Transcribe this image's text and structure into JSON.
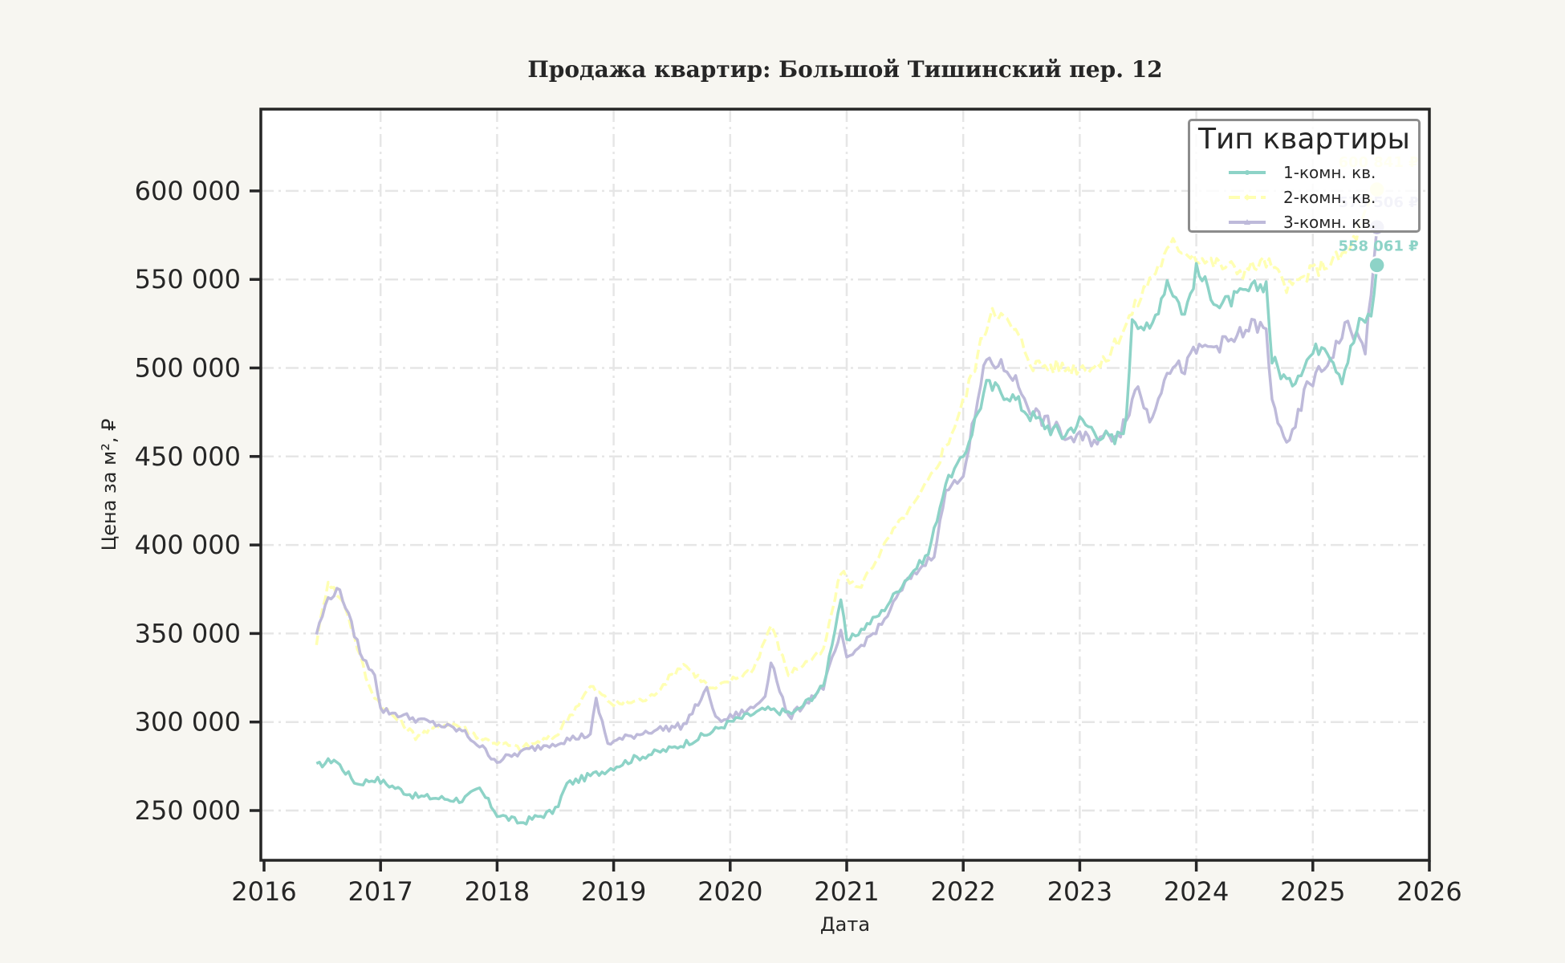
{
  "chart_data": {
    "type": "line",
    "title": "Продажа квартир: Большой Тишинский пер. 12",
    "xlabel": "Дата",
    "ylabel": "Цена за м², ₽",
    "xlim": [
      2016,
      2026
    ],
    "ylim": [
      223000,
      643000
    ],
    "grid": true,
    "legend_position": "upper right",
    "legend_title": "Тип квартиры",
    "x_ticks": [
      "2016",
      "2017",
      "2018",
      "2019",
      "2020",
      "2021",
      "2022",
      "2023",
      "2024",
      "2025",
      "2026"
    ],
    "y_ticks": [
      250000,
      300000,
      350000,
      400000,
      450000,
      500000,
      550000,
      600000
    ],
    "y_tick_labels": [
      "250 000",
      "300 000",
      "350 000",
      "400 000",
      "450 000",
      "500 000",
      "550 000",
      "600 000"
    ],
    "series": [
      {
        "name": "1-комн. кв.",
        "color": "#8dd3c7",
        "dash": "solid",
        "end_label": "558 061 ₽",
        "end_value": 558061,
        "x": [
          2016.45,
          2016.6,
          2016.8,
          2016.95,
          2017.3,
          2017.7,
          2017.85,
          2018.0,
          2018.2,
          2018.5,
          2018.6,
          2018.9,
          2019.2,
          2019.5,
          2019.8,
          2020.0,
          2020.3,
          2020.55,
          2020.8,
          2020.95,
          2021.0,
          2021.3,
          2021.5,
          2021.7,
          2021.85,
          2022.0,
          2022.2,
          2022.4,
          2022.6,
          2022.85,
          2023.0,
          2023.3,
          2023.4,
          2023.45,
          2023.6,
          2023.75,
          2023.9,
          2024.0,
          2024.2,
          2024.5,
          2024.6,
          2024.65,
          2024.8,
          2024.95,
          2025.1,
          2025.25,
          2025.4,
          2025.5,
          2025.55
        ],
        "values": [
          275000,
          279000,
          265000,
          268000,
          258000,
          256000,
          262000,
          248000,
          243000,
          250000,
          265000,
          272000,
          280000,
          285000,
          293000,
          300000,
          307000,
          305000,
          320000,
          370000,
          345000,
          362000,
          380000,
          395000,
          435000,
          450000,
          490000,
          485000,
          472000,
          462000,
          470000,
          458000,
          470000,
          530000,
          520000,
          550000,
          530000,
          555000,
          535000,
          545000,
          548000,
          505000,
          490000,
          505000,
          515000,
          495000,
          525000,
          530000,
          558061
        ]
      },
      {
        "name": "2-комн. кв.",
        "color": "#ffffb3",
        "dash": "dashed",
        "end_label": "600 841 ₽",
        "end_value": 600841,
        "x": [
          2016.45,
          2016.55,
          2016.7,
          2016.9,
          2017.0,
          2017.3,
          2017.6,
          2017.9,
          2018.2,
          2018.5,
          2018.8,
          2019.0,
          2019.3,
          2019.6,
          2019.85,
          2020.2,
          2020.35,
          2020.5,
          2020.8,
          2020.95,
          2021.1,
          2021.4,
          2021.6,
          2021.8,
          2022.0,
          2022.25,
          2022.45,
          2022.6,
          2022.9,
          2023.2,
          2023.4,
          2023.6,
          2023.8,
          2024.1,
          2024.4,
          2024.6,
          2024.8,
          2025.0,
          2025.3,
          2025.55
        ],
        "values": [
          345000,
          380000,
          365000,
          320000,
          310000,
          292000,
          300000,
          290000,
          285000,
          292000,
          320000,
          310000,
          313000,
          333000,
          318000,
          330000,
          355000,
          327000,
          340000,
          385000,
          375000,
          408000,
          425000,
          448000,
          480000,
          535000,
          520000,
          502000,
          500000,
          502000,
          525000,
          550000,
          570000,
          560000,
          555000,
          560000,
          545000,
          555000,
          565000,
          600841
        ]
      },
      {
        "name": "3-комн. кв.",
        "color": "#bebada",
        "dash": "solid",
        "end_label": "579 506 ₽",
        "end_value": 579506,
        "x": [
          2016.45,
          2016.55,
          2016.65,
          2016.75,
          2016.85,
          2016.95,
          2017.0,
          2017.4,
          2017.7,
          2018.0,
          2018.3,
          2018.6,
          2018.8,
          2018.85,
          2018.95,
          2019.3,
          2019.6,
          2019.8,
          2019.9,
          2020.2,
          2020.3,
          2020.35,
          2020.5,
          2020.8,
          2020.95,
          2021.0,
          2021.3,
          2021.5,
          2021.75,
          2021.85,
          2022.0,
          2022.2,
          2022.4,
          2022.6,
          2022.9,
          2023.2,
          2023.35,
          2023.5,
          2023.6,
          2023.75,
          2023.9,
          2024.0,
          2024.3,
          2024.5,
          2024.6,
          2024.65,
          2024.8,
          2024.95,
          2025.1,
          2025.3,
          2025.45,
          2025.55
        ],
        "values": [
          350000,
          370000,
          375000,
          355000,
          335000,
          328000,
          307000,
          300000,
          295000,
          278000,
          285000,
          290000,
          293000,
          312000,
          288000,
          295000,
          298000,
          318000,
          300000,
          308000,
          315000,
          335000,
          302000,
          320000,
          350000,
          335000,
          355000,
          378000,
          395000,
          430000,
          440000,
          505000,
          498000,
          475000,
          460000,
          460000,
          465000,
          490000,
          470000,
          500000,
          500000,
          510000,
          515000,
          525000,
          520000,
          480000,
          455000,
          490000,
          500000,
          525000,
          510000,
          579506
        ]
      }
    ]
  }
}
